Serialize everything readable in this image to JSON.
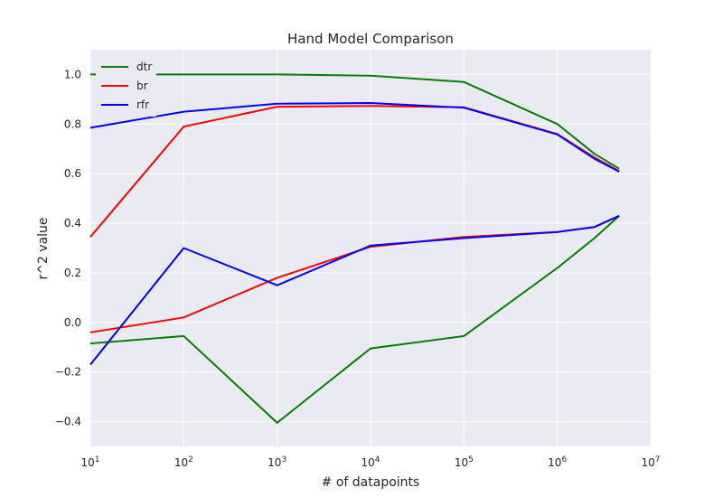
{
  "chart_data": {
    "type": "line",
    "title": "Hand Model Comparison",
    "xlabel": "# of datapoints",
    "ylabel": "r^2 value",
    "xscale": "log",
    "xlim": [
      10,
      10000000
    ],
    "ylim": [
      -0.5,
      1.1
    ],
    "x_ticks": [
      {
        "base": "10",
        "exp": "1"
      },
      {
        "base": "10",
        "exp": "2"
      },
      {
        "base": "10",
        "exp": "3"
      },
      {
        "base": "10",
        "exp": "4"
      },
      {
        "base": "10",
        "exp": "5"
      },
      {
        "base": "10",
        "exp": "6"
      },
      {
        "base": "10",
        "exp": "7"
      }
    ],
    "y_ticks": [
      "−0.4",
      "−0.2",
      "0.0",
      "0.2",
      "0.4",
      "0.6",
      "0.8",
      "1.0"
    ],
    "grid": true,
    "legend_position": "top-left",
    "series": [
      {
        "name": "dtr",
        "color": "#008000",
        "x": [
          10,
          100,
          1000,
          10000,
          100000,
          1000000,
          2500000,
          4600000
        ],
        "y": [
          1.0,
          1.0,
          1.0,
          0.995,
          0.97,
          0.8,
          0.68,
          0.62
        ]
      },
      {
        "name": "br",
        "color": "#ff0000",
        "x": [
          10,
          100,
          1000,
          10000,
          100000,
          1000000,
          2500000,
          4600000
        ],
        "y": [
          0.345,
          0.79,
          0.87,
          0.873,
          0.868,
          0.76,
          0.665,
          0.61
        ]
      },
      {
        "name": "rfr",
        "color": "#0000ff",
        "x": [
          10,
          100,
          1000,
          10000,
          100000,
          1000000,
          2500000,
          4600000
        ],
        "y": [
          0.785,
          0.85,
          0.882,
          0.885,
          0.866,
          0.758,
          0.66,
          0.608
        ]
      },
      {
        "name": "",
        "color": "#008000",
        "x": [
          10,
          100,
          1000,
          10000,
          100000,
          1000000,
          2500000,
          4600000
        ],
        "y": [
          -0.085,
          -0.055,
          -0.405,
          -0.105,
          -0.055,
          0.22,
          0.34,
          0.43
        ]
      },
      {
        "name": "",
        "color": "#ff0000",
        "x": [
          10,
          100,
          1000,
          10000,
          100000,
          1000000,
          2500000,
          4600000
        ],
        "y": [
          -0.04,
          0.02,
          0.18,
          0.305,
          0.345,
          0.365,
          0.385,
          0.43
        ]
      },
      {
        "name": "",
        "color": "#0000ff",
        "x": [
          10,
          100,
          1000,
          10000,
          100000,
          1000000,
          2500000,
          4600000
        ],
        "y": [
          -0.17,
          0.3,
          0.15,
          0.31,
          0.34,
          0.365,
          0.385,
          0.43
        ]
      }
    ]
  },
  "colors": {
    "plot_background": "#eaeaf2",
    "grid": "#ffffff"
  }
}
